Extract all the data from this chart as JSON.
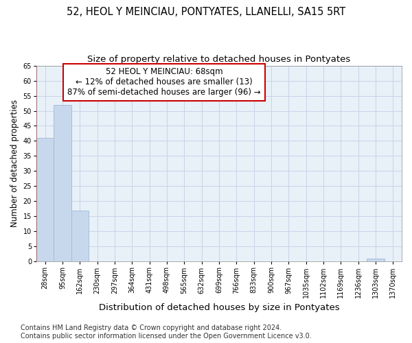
{
  "title": "52, HEOL Y MEINCIAU, PONTYATES, LLANELLI, SA15 5RT",
  "subtitle": "Size of property relative to detached houses in Pontyates",
  "xlabel": "Distribution of detached houses by size in Pontyates",
  "ylabel": "Number of detached properties",
  "bar_categories": [
    "28sqm",
    "95sqm",
    "162sqm",
    "230sqm",
    "297sqm",
    "364sqm",
    "431sqm",
    "498sqm",
    "565sqm",
    "632sqm",
    "699sqm",
    "766sqm",
    "833sqm",
    "900sqm",
    "967sqm",
    "1035sqm",
    "1102sqm",
    "1169sqm",
    "1236sqm",
    "1303sqm",
    "1370sqm"
  ],
  "bar_values": [
    41,
    52,
    17,
    0,
    0,
    0,
    0,
    0,
    0,
    0,
    0,
    0,
    0,
    0,
    0,
    0,
    0,
    0,
    0,
    1,
    0
  ],
  "bar_color": "#c8d8ec",
  "bar_edgecolor": "#a0b8d8",
  "annotation_box_text": "52 HEOL Y MEINCIAU: 68sqm\n← 12% of detached houses are smaller (13)\n87% of semi-detached houses are larger (96) →",
  "vline_color": "#cc0000",
  "ylim": [
    0,
    65
  ],
  "yticks": [
    0,
    5,
    10,
    15,
    20,
    25,
    30,
    35,
    40,
    45,
    50,
    55,
    60,
    65
  ],
  "footer_text": "Contains HM Land Registry data © Crown copyright and database right 2024.\nContains public sector information licensed under the Open Government Licence v3.0.",
  "background_color": "#ffffff",
  "grid_color": "#c8d4e8",
  "title_fontsize": 10.5,
  "subtitle_fontsize": 9.5,
  "xlabel_fontsize": 9.5,
  "ylabel_fontsize": 8.5,
  "annot_fontsize": 8.5,
  "tick_fontsize": 7,
  "footer_fontsize": 7
}
